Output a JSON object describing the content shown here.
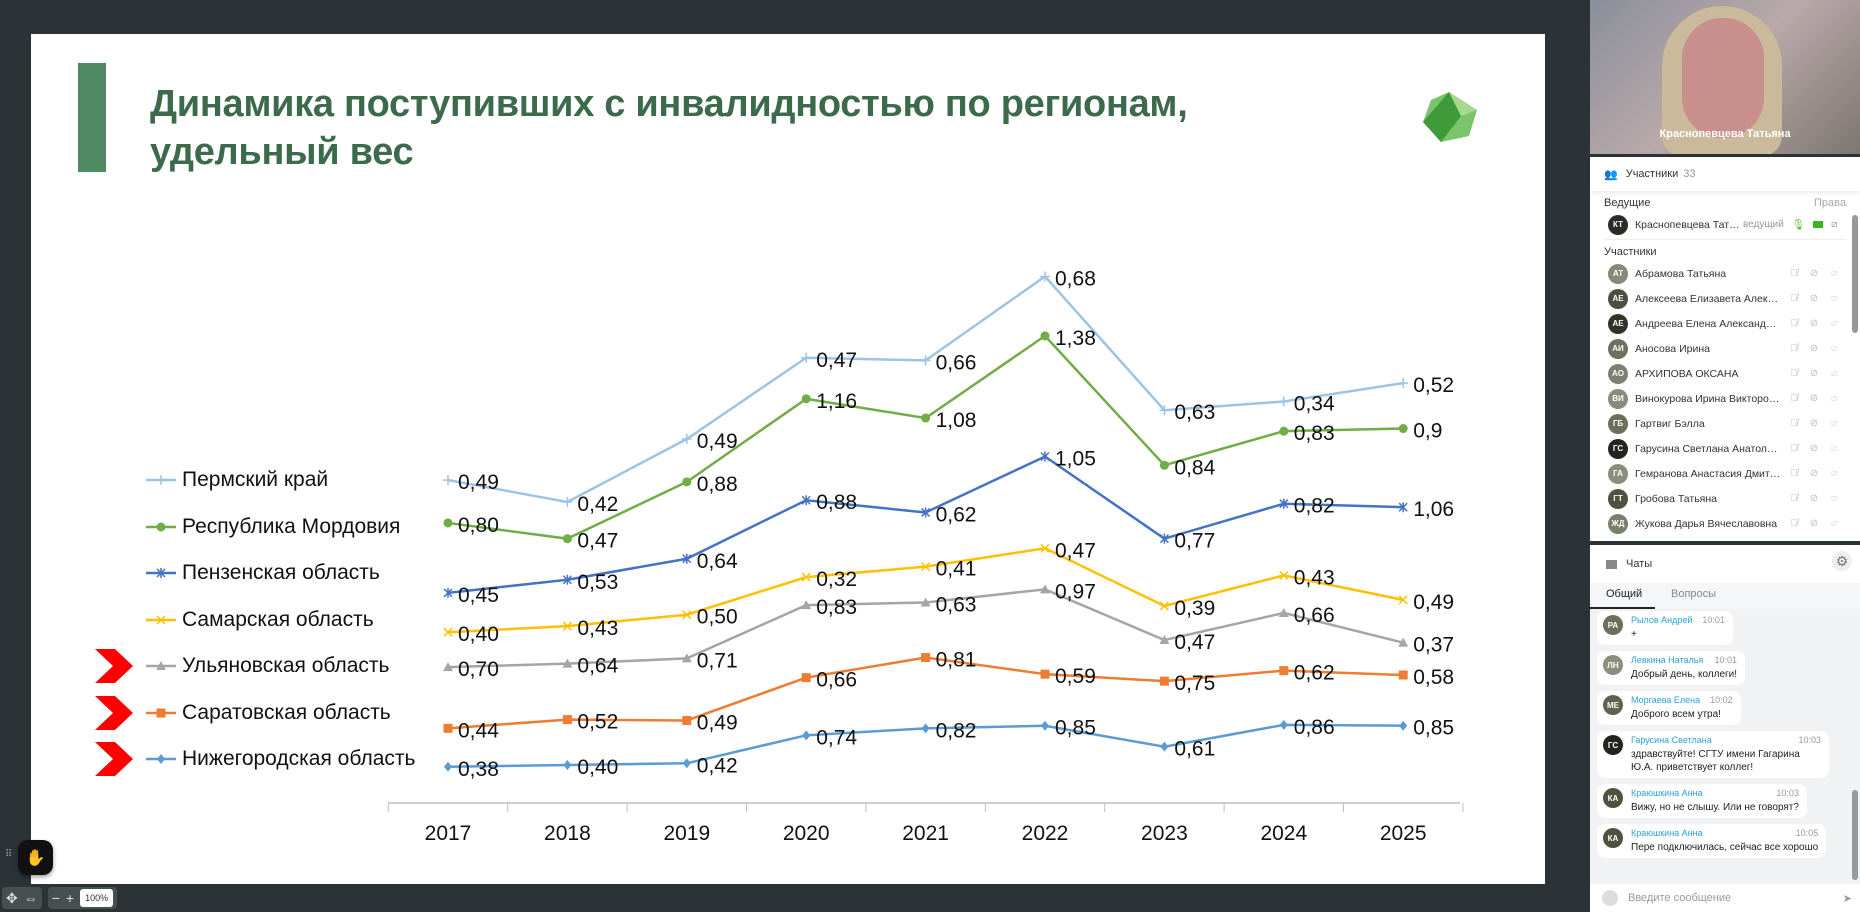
{
  "slide": {
    "title_line1": "Динамика поступивших с инвалидностью по регионам,",
    "title_line2": "удельный вес",
    "accent_color": "#4f8a62"
  },
  "chart_data": {
    "type": "line",
    "stacked": true,
    "title": "Динамика поступивших с инвалидностью по регионам, удельный вес",
    "categories": [
      "2017",
      "2018",
      "2019",
      "2020",
      "2021",
      "2022",
      "2023",
      "2024",
      "2025"
    ],
    "legend_position": "left",
    "grid": false,
    "series": [
      {
        "name": "Пермский край",
        "color": "#9dc3e6",
        "marker": "plus",
        "values": [
          0.49,
          0.42,
          0.49,
          0.47,
          0.66,
          0.68,
          0.63,
          0.34,
          0.52
        ],
        "labels": [
          "0,49",
          "0,42",
          "0,49",
          "0,47",
          "0,66",
          "0,68",
          "0,63",
          "0,34",
          "0,52"
        ]
      },
      {
        "name": "Республика Мордовия",
        "color": "#70ad47",
        "marker": "circle",
        "values": [
          0.8,
          0.47,
          0.88,
          1.16,
          1.08,
          1.38,
          0.84,
          0.83,
          0.9
        ],
        "labels": [
          "0,80",
          "0,47",
          "0,88",
          "1,16",
          "1,08",
          "1,38",
          "0,84",
          "0,83",
          "0,9"
        ]
      },
      {
        "name": "Пензенская область",
        "color": "#4472c4",
        "marker": "asterisk",
        "values": [
          0.45,
          0.53,
          0.64,
          0.88,
          0.62,
          1.05,
          0.77,
          0.82,
          1.06
        ],
        "labels": [
          "0,45",
          "0,53",
          "0,64",
          "0,88",
          "0,62",
          "1,05",
          "0,77",
          "0,82",
          "1,06"
        ]
      },
      {
        "name": "Самарская область",
        "color": "#ffc000",
        "marker": "x",
        "values": [
          0.4,
          0.43,
          0.5,
          0.32,
          0.41,
          0.47,
          0.39,
          0.43,
          0.49
        ],
        "labels": [
          "0,40",
          "0,43",
          "0,50",
          "0,32",
          "0,41",
          "0,47",
          "0,39",
          "0,43",
          "0,49"
        ]
      },
      {
        "name": "Ульяновская область",
        "color": "#a5a5a5",
        "marker": "triangle",
        "highlighted": true,
        "values": [
          0.7,
          0.64,
          0.71,
          0.83,
          0.63,
          0.97,
          0.47,
          0.66,
          0.37
        ],
        "labels": [
          "0,70",
          "0,64",
          "0,71",
          "0,83",
          "0,63",
          "0,97",
          "0,47",
          "0,66",
          "0,37"
        ]
      },
      {
        "name": "Саратовская область",
        "color": "#ed7d31",
        "marker": "square",
        "highlighted": true,
        "values": [
          0.44,
          0.52,
          0.49,
          0.66,
          0.81,
          0.59,
          0.75,
          0.62,
          0.58
        ],
        "labels": [
          "0,44",
          "0,52",
          "0,49",
          "0,66",
          "0,81",
          "0,59",
          "0,75",
          "0,62",
          "0,58"
        ]
      },
      {
        "name": "Нижегородская область",
        "color": "#5b9bd5",
        "marker": "diamond",
        "highlighted": true,
        "values": [
          0.38,
          0.4,
          0.42,
          0.74,
          0.82,
          0.85,
          0.61,
          0.86,
          0.85
        ],
        "labels": [
          "0,38",
          "0,40",
          "0,42",
          "0,74",
          "0,82",
          "0,85",
          "0,61",
          "0,86",
          "0,85"
        ]
      }
    ],
    "highlight_color": "#ff0000"
  },
  "video": {
    "name": "Краснопевцева Татьяна"
  },
  "participants": {
    "header": "Участники",
    "count": "33",
    "hosts_label": "Ведущие",
    "rights_label": "Права",
    "host": {
      "initials": "КТ",
      "name": "Краснопевцева Татья...",
      "role": "ведущий",
      "avatar_color": "#2a2a26"
    },
    "members_label": "Участники",
    "members": [
      {
        "initials": "АТ",
        "name": "Абрамова Татьяна",
        "avatar_color": "#84897a"
      },
      {
        "initials": "АЕ",
        "name": "Алексеева Елизавета Алексеевна",
        "avatar_color": "#4a4f40"
      },
      {
        "initials": "АЕ",
        "name": "Андреева Елена Александровна",
        "avatar_color": "#2f3328"
      },
      {
        "initials": "АИ",
        "name": "Аносова Ирина",
        "avatar_color": "#6d7260"
      },
      {
        "initials": "АО",
        "name": "АРХИПОВА ОКСАНА",
        "avatar_color": "#7c8070"
      },
      {
        "initials": "ВИ",
        "name": "Винокурова Ирина Викторовна",
        "avatar_color": "#888c7c"
      },
      {
        "initials": "ГБ",
        "name": "Гартвиг Бэлла",
        "avatar_color": "#6b705d"
      },
      {
        "initials": "ГС",
        "name": "Гарусина Светлана Анатольевна",
        "avatar_color": "#23241f"
      },
      {
        "initials": "ГА",
        "name": "Гемранова Анастасия Дмитриев...",
        "avatar_color": "#8a8e7d"
      },
      {
        "initials": "ГТ",
        "name": "Гробова Татьяна",
        "avatar_color": "#4e523f"
      },
      {
        "initials": "ЖД",
        "name": "Жукова Дарья Вячеславовна",
        "avatar_color": "#7a7f6c"
      }
    ]
  },
  "chat": {
    "header": "Чаты",
    "tabs": [
      "Общий",
      "Вопросы"
    ],
    "messages": [
      {
        "initials": "РА",
        "author": "Рылов Андрей",
        "time": "10:01",
        "text": "+",
        "avatar_color": "#6b6f5c"
      },
      {
        "initials": "ЛН",
        "author": "Левкина Наталья",
        "time": "10:01",
        "text": "Добрый день, коллеги!",
        "avatar_color": "#8b8f7c"
      },
      {
        "initials": "МЕ",
        "author": "Моргаева Елена",
        "time": "10:02",
        "text": "Доброго всем утра!",
        "avatar_color": "#5e6250"
      },
      {
        "initials": "ГС",
        "author": "Гарусина Светлана",
        "time": "10:03",
        "text": "здравствуйте! СГТУ имени Гагарина Ю.А. приветствует коллег!",
        "avatar_color": "#23241f"
      },
      {
        "initials": "КА",
        "author": "Краюшкина Анна",
        "time": "10:03",
        "text": "Вижу, но не слышу. Или не говорят?",
        "avatar_color": "#4e523f"
      },
      {
        "initials": "КА",
        "author": "Краюшкина Анна",
        "time": "10:05",
        "text": "Пере подключилась, сейчас все хорошо",
        "avatar_color": "#4e523f"
      }
    ],
    "input_placeholder": "Введите сообщение"
  },
  "toolbar": {
    "zoom": "100%"
  }
}
